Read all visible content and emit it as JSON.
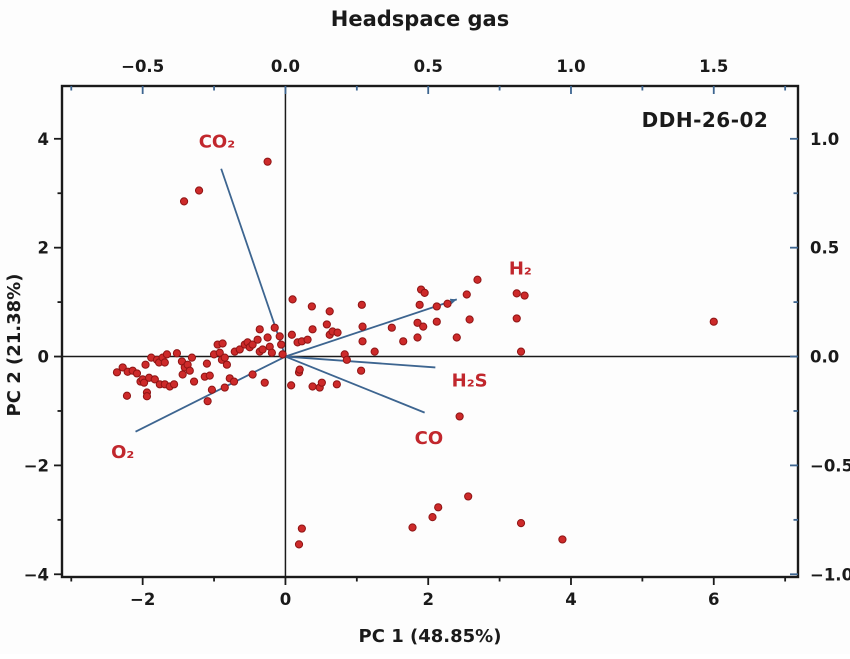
{
  "figure": {
    "title": "Headspace gas",
    "corner_label": "DDH-26-02",
    "xlabel": "PC 1 (48.85%)",
    "ylabel": "PC 2 (21.38%)"
  },
  "colors": {
    "point_fill": "#cd2a2a",
    "point_edge": "#8f1414",
    "vector_blue": "#3d6590",
    "gas_label_red": "#c1272d",
    "axis_black": "#1a1a1a"
  },
  "chart_data": {
    "type": "scatter",
    "subtype": "pca-biplot",
    "title": "Headspace gas",
    "corner_label": "DDH-26-02",
    "xlabel": "PC 1 (48.85%)",
    "ylabel": "PC 2 (21.38%)",
    "xlim": [
      -3.13,
      7.18
    ],
    "ylim": [
      -4.05,
      4.97
    ],
    "grid": false,
    "legend": "none",
    "bottom_axis": {
      "label": "PC 1 (48.85%)",
      "major_ticks": [
        {
          "v": -2,
          "t": "−2"
        },
        {
          "v": 0,
          "t": "0"
        },
        {
          "v": 2,
          "t": "2"
        },
        {
          "v": 4,
          "t": "4"
        },
        {
          "v": 6,
          "t": "6"
        }
      ],
      "minor_ticks": [
        -3,
        -1,
        1,
        3,
        5,
        7
      ]
    },
    "left_axis": {
      "label": "PC 2 (21.38%)",
      "major_ticks": [
        {
          "v": 4,
          "t": "4"
        },
        {
          "v": 2,
          "t": "2"
        },
        {
          "v": 0,
          "t": "0"
        },
        {
          "v": -2,
          "t": "−2"
        },
        {
          "v": -4,
          "t": "−4"
        }
      ],
      "minor_ticks": [
        3,
        1,
        -1,
        -3
      ]
    },
    "top_axis": {
      "label": "Headspace gas",
      "scale_vs_primary": 0.25,
      "major_ticks": [
        {
          "v": -2,
          "t": "−0.5"
        },
        {
          "v": 0,
          "t": "0.0"
        },
        {
          "v": 2,
          "t": "0.5"
        },
        {
          "v": 4,
          "t": "1.0"
        },
        {
          "v": 6,
          "t": "1.5"
        }
      ],
      "minor_ticks": [
        -3,
        -1,
        1,
        3,
        5,
        7
      ]
    },
    "right_axis": {
      "scale_vs_primary": 0.25,
      "major_ticks": [
        {
          "v": 4,
          "t": "1.0"
        },
        {
          "v": 2,
          "t": "0.5"
        },
        {
          "v": 0,
          "t": "0.0"
        },
        {
          "v": -2,
          "t": "−0.5"
        },
        {
          "v": -4,
          "t": "−1.0"
        }
      ],
      "minor_ticks": [
        3,
        1,
        -1,
        -3
      ]
    },
    "loadings": [
      {
        "name": "co2",
        "label": "CO₂",
        "x": -0.9,
        "y": 3.45,
        "label_x": -0.96,
        "label_y": 3.95,
        "arrow": false
      },
      {
        "name": "o2",
        "label": "O₂",
        "x": -2.1,
        "y": -1.38,
        "label_x": -2.28,
        "label_y": -1.75,
        "arrow": false
      },
      {
        "name": "h2",
        "label": "H₂",
        "x": 2.4,
        "y": 1.05,
        "label_x": 3.29,
        "label_y": 1.62,
        "arrow": true
      },
      {
        "name": "h2s",
        "label": "H₂S",
        "x": 2.1,
        "y": -0.2,
        "label_x": 2.58,
        "label_y": -0.44,
        "arrow": false
      },
      {
        "name": "co",
        "label": "CO",
        "x": 1.95,
        "y": -1.03,
        "label_x": 2.01,
        "label_y": -1.5,
        "arrow": false
      }
    ],
    "points": [
      [
        -2.36,
        -0.29
      ],
      [
        -2.28,
        -0.2
      ],
      [
        -2.21,
        -0.28
      ],
      [
        -2.14,
        -0.26
      ],
      [
        -2.08,
        -0.31
      ],
      [
        -2.22,
        -0.72
      ],
      [
        -2.03,
        -0.46
      ],
      [
        -2.0,
        -0.42
      ],
      [
        -1.98,
        -0.48
      ],
      [
        -1.96,
        -0.15
      ],
      [
        -1.94,
        -0.66
      ],
      [
        -1.94,
        -0.73
      ],
      [
        -1.91,
        -0.39
      ],
      [
        -1.88,
        -0.02
      ],
      [
        -1.83,
        -0.42
      ],
      [
        -1.8,
        -0.06
      ],
      [
        -1.77,
        -0.11
      ],
      [
        -1.76,
        -0.51
      ],
      [
        -1.72,
        -0.02
      ],
      [
        -1.69,
        -0.11
      ],
      [
        -1.69,
        -0.51
      ],
      [
        -1.66,
        0.04
      ],
      [
        -1.62,
        -0.55
      ],
      [
        -1.56,
        -0.51
      ],
      [
        -1.52,
        0.06
      ],
      [
        -1.45,
        -0.09
      ],
      [
        -1.44,
        -0.33
      ],
      [
        -1.41,
        -0.2
      ],
      [
        -1.37,
        -0.15
      ],
      [
        -1.34,
        -0.26
      ],
      [
        -1.31,
        -0.02
      ],
      [
        -1.28,
        -0.46
      ],
      [
        -1.13,
        -0.37
      ],
      [
        -1.1,
        -0.13
      ],
      [
        -1.09,
        -0.82
      ],
      [
        -1.06,
        -0.35
      ],
      [
        -1.03,
        -0.61
      ],
      [
        -1.0,
        0.04
      ],
      [
        -0.95,
        0.22
      ],
      [
        -0.92,
        0.07
      ],
      [
        -0.89,
        -0.06
      ],
      [
        -0.88,
        0.24
      ],
      [
        -0.85,
        -0.02
      ],
      [
        -0.85,
        -0.57
      ],
      [
        -0.82,
        -0.15
      ],
      [
        -0.78,
        -0.4
      ],
      [
        -0.72,
        -0.46
      ],
      [
        -0.71,
        0.09
      ],
      [
        -0.64,
        0.13
      ],
      [
        -0.57,
        0.22
      ],
      [
        -0.53,
        0.26
      ],
      [
        -0.5,
        0.17
      ],
      [
        -0.46,
        0.22
      ],
      [
        -0.46,
        -0.33
      ],
      [
        -0.39,
        0.31
      ],
      [
        -0.36,
        0.5
      ],
      [
        -0.36,
        0.09
      ],
      [
        -0.32,
        0.13
      ],
      [
        -0.29,
        -0.48
      ],
      [
        -0.25,
        0.35
      ],
      [
        -0.22,
        0.18
      ],
      [
        -0.19,
        0.07
      ],
      [
        -0.15,
        0.53
      ],
      [
        -0.08,
        0.37
      ],
      [
        -0.06,
        0.22
      ],
      [
        -0.04,
        0.04
      ],
      [
        0.09,
        0.4
      ],
      [
        0.1,
        1.05
      ],
      [
        0.17,
        0.26
      ],
      [
        0.23,
        0.28
      ],
      [
        0.31,
        0.31
      ],
      [
        0.37,
        0.92
      ],
      [
        0.38,
        0.5
      ],
      [
        0.58,
        0.59
      ],
      [
        0.62,
        0.83
      ],
      [
        0.62,
        0.4
      ],
      [
        0.66,
        0.46
      ],
      [
        0.73,
        0.44
      ],
      [
        0.83,
        0.04
      ],
      [
        0.86,
        -0.06
      ],
      [
        1.07,
        0.95
      ],
      [
        1.08,
        0.55
      ],
      [
        1.08,
        0.28
      ],
      [
        1.25,
        0.09
      ],
      [
        1.49,
        0.53
      ],
      [
        1.65,
        0.28
      ],
      [
        1.85,
        0.62
      ],
      [
        1.85,
        0.35
      ],
      [
        1.88,
        0.95
      ],
      [
        1.9,
        1.23
      ],
      [
        1.95,
        1.17
      ],
      [
        1.93,
        0.55
      ],
      [
        2.12,
        0.92
      ],
      [
        2.12,
        0.64
      ],
      [
        2.27,
        0.97
      ],
      [
        2.4,
        0.35
      ],
      [
        2.54,
        1.14
      ],
      [
        2.58,
        0.68
      ],
      [
        2.69,
        1.41
      ],
      [
        3.24,
        1.16
      ],
      [
        3.35,
        1.12
      ],
      [
        3.24,
        0.7
      ],
      [
        3.3,
        0.09
      ],
      [
        6.0,
        0.64
      ],
      [
        0.08,
        -0.53
      ],
      [
        0.19,
        -0.29
      ],
      [
        0.2,
        -0.24
      ],
      [
        0.38,
        -0.55
      ],
      [
        0.48,
        -0.57
      ],
      [
        0.51,
        -0.48
      ],
      [
        0.72,
        -0.51
      ],
      [
        1.06,
        -0.26
      ],
      [
        2.44,
        -1.1
      ],
      [
        -1.42,
        2.85
      ],
      [
        -1.21,
        3.05
      ],
      [
        -0.25,
        3.58
      ],
      [
        0.19,
        -3.45
      ],
      [
        0.23,
        -3.16
      ],
      [
        1.78,
        -3.14
      ],
      [
        2.06,
        -2.95
      ],
      [
        2.14,
        -2.77
      ],
      [
        2.56,
        -2.57
      ],
      [
        3.3,
        -3.06
      ],
      [
        3.88,
        -3.36
      ]
    ]
  }
}
